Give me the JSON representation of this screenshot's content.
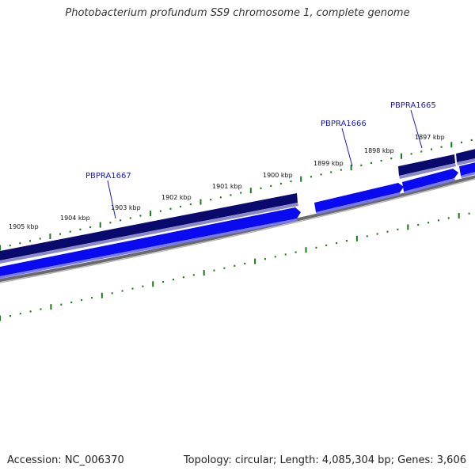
{
  "title": "Photobacterium profundum SS9 chromosome 1, complete genome",
  "footer": {
    "accession": "Accession: NC_006370",
    "summary": "Topology: circular; Length: 4,085,304 bp; Genes: 3,606"
  },
  "kbp_labels": [
    "1897 kbp",
    "1898 kbp",
    "1899 kbp",
    "1900 kbp",
    "1901 kbp",
    "1902 kbp",
    "1903 kbp",
    "1904 kbp",
    "1905 kbp"
  ],
  "gene_labels": [
    "PBPRA1665",
    "PBPRA1666",
    "PBPRA1667"
  ],
  "colors": {
    "cds_dark": "#0a0a6e",
    "cds_blue": "#0a0af0",
    "backbone": "#7a7a7a",
    "ticks": "#1a7a1a",
    "gene_label": "#1a1ac8"
  }
}
